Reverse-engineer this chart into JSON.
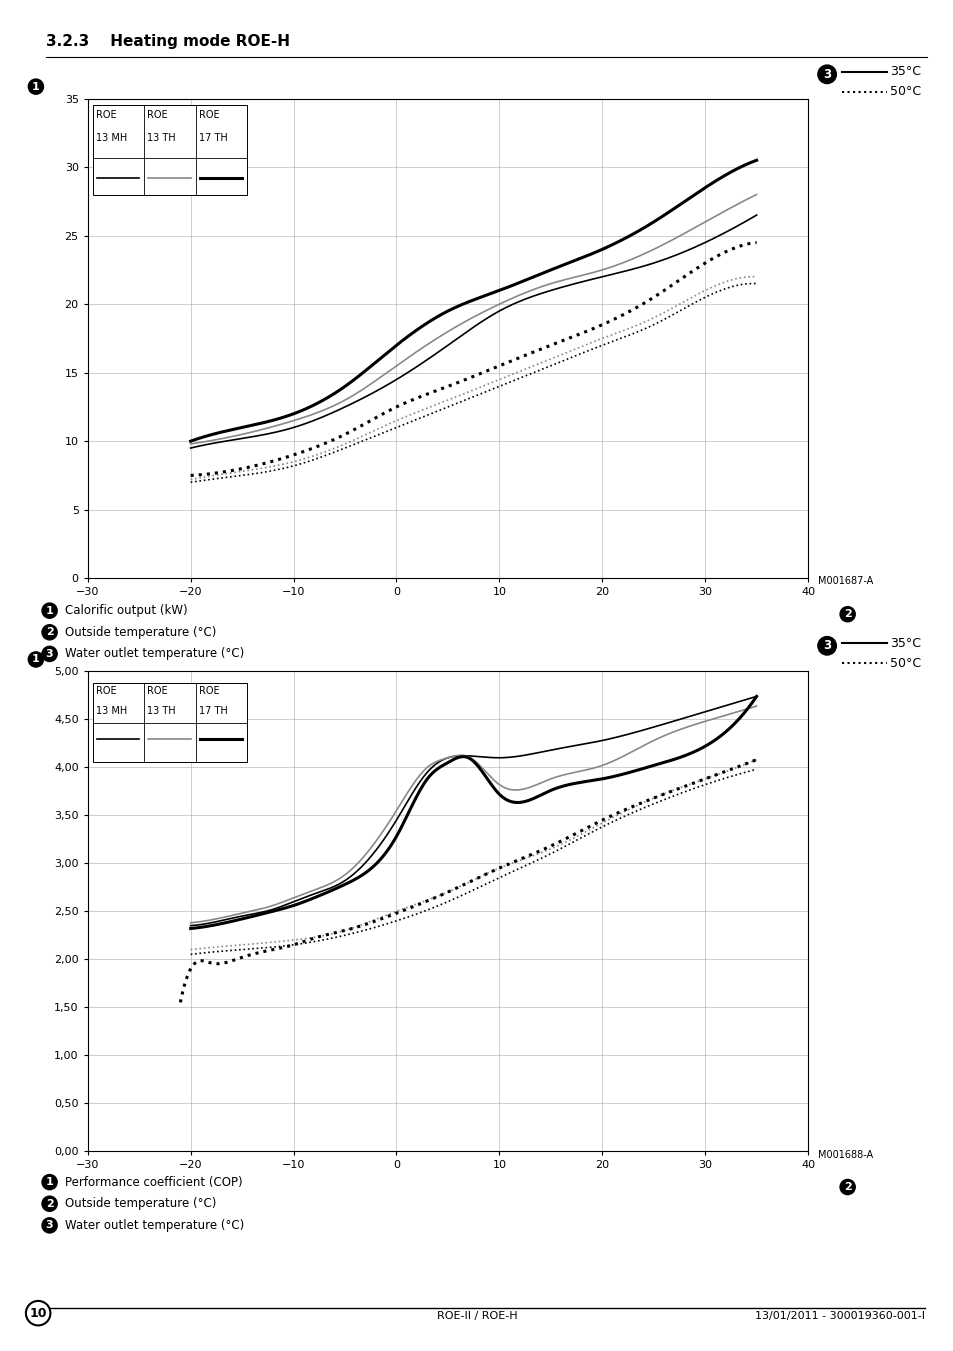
{
  "page_title": "3.2.3    Heating mode ROE-H",
  "chart1": {
    "ylim": [
      0,
      35
    ],
    "yticks": [
      0,
      5,
      10,
      15,
      20,
      25,
      30,
      35
    ],
    "xlim": [
      -30,
      40
    ],
    "xticks": [
      -30,
      -20,
      -10,
      0,
      10,
      20,
      30,
      40
    ],
    "label1": "Calorific output (kW)",
    "label2": "Outside temperature (°C)",
    "label3": "Water outlet temperature (°C)",
    "ref_code": "M001687-A",
    "lines": [
      {
        "x": [
          -20,
          -15,
          -10,
          -5,
          0,
          5,
          10,
          15,
          20,
          25,
          30,
          35
        ],
        "y": [
          9.5,
          10.2,
          11.0,
          12.5,
          14.5,
          17.0,
          19.5,
          21.0,
          22.0,
          23.0,
          24.5,
          26.5
        ],
        "color": "#000000",
        "lw": 1.2,
        "ls": "-"
      },
      {
        "x": [
          -20,
          -15,
          -10,
          -5,
          0,
          5,
          10,
          15,
          20,
          25,
          30,
          35
        ],
        "y": [
          7.0,
          7.5,
          8.2,
          9.5,
          11.0,
          12.5,
          14.0,
          15.5,
          17.0,
          18.5,
          20.5,
          21.5
        ],
        "color": "#000000",
        "lw": 1.2,
        "ls": ":"
      },
      {
        "x": [
          -20,
          -15,
          -10,
          -5,
          0,
          5,
          10,
          15,
          20,
          25,
          30,
          35
        ],
        "y": [
          9.8,
          10.5,
          11.5,
          13.0,
          15.5,
          18.0,
          20.0,
          21.5,
          22.5,
          24.0,
          26.0,
          28.0
        ],
        "color": "#888888",
        "lw": 1.2,
        "ls": "-"
      },
      {
        "x": [
          -20,
          -15,
          -10,
          -5,
          0,
          5,
          10,
          15,
          20,
          25,
          30,
          35
        ],
        "y": [
          7.2,
          7.8,
          8.5,
          9.8,
          11.5,
          13.0,
          14.5,
          16.0,
          17.5,
          19.0,
          21.0,
          22.0
        ],
        "color": "#888888",
        "lw": 1.2,
        "ls": ":"
      },
      {
        "x": [
          -20,
          -15,
          -10,
          -5,
          0,
          5,
          10,
          15,
          20,
          25,
          30,
          35
        ],
        "y": [
          10.0,
          11.0,
          12.0,
          14.0,
          17.0,
          19.5,
          21.0,
          22.5,
          24.0,
          26.0,
          28.5,
          30.5
        ],
        "color": "#000000",
        "lw": 2.2,
        "ls": "-"
      },
      {
        "x": [
          -20,
          -15,
          -10,
          -5,
          0,
          5,
          10,
          15,
          20,
          25,
          30,
          35
        ],
        "y": [
          7.5,
          8.0,
          9.0,
          10.5,
          12.5,
          14.0,
          15.5,
          17.0,
          18.5,
          20.5,
          23.0,
          24.5
        ],
        "color": "#000000",
        "lw": 2.2,
        "ls": ":"
      }
    ],
    "legend_lines": [
      {
        "color": "#000000",
        "lw": 1.2,
        "ls": "-"
      },
      {
        "color": "#888888",
        "lw": 1.2,
        "ls": "-"
      },
      {
        "color": "#000000",
        "lw": 2.2,
        "ls": "-"
      }
    ]
  },
  "chart2": {
    "ylim": [
      0.0,
      5.0
    ],
    "yticks": [
      0.0,
      0.5,
      1.0,
      1.5,
      2.0,
      2.5,
      3.0,
      3.5,
      4.0,
      4.5,
      5.0
    ],
    "ytick_labels": [
      "0,00",
      "0,50",
      "1,00",
      "1,50",
      "2,00",
      "2,50",
      "3,00",
      "3,50",
      "4,00",
      "4,50",
      "5,00"
    ],
    "xlim": [
      -30,
      40
    ],
    "xticks": [
      -30,
      -20,
      -10,
      0,
      10,
      20,
      30,
      40
    ],
    "label1": "Performance coefficient (COP)",
    "label2": "Outside temperature (°C)",
    "label3": "Water outlet temperature (°C)",
    "ref_code": "M001688-A",
    "lines": [
      {
        "x": [
          -20,
          -18,
          -15,
          -12,
          -10,
          -8,
          -5,
          0,
          3,
          5,
          7,
          10,
          15,
          20,
          25,
          30,
          35
        ],
        "y": [
          2.35,
          2.38,
          2.45,
          2.52,
          2.6,
          2.68,
          2.82,
          3.45,
          3.95,
          4.1,
          4.12,
          4.1,
          4.18,
          4.28,
          4.42,
          4.58,
          4.74
        ],
        "color": "#000000",
        "lw": 1.2,
        "ls": "-"
      },
      {
        "x": [
          -20,
          -15,
          -10,
          -5,
          0,
          5,
          10,
          15,
          20,
          25,
          30,
          35
        ],
        "y": [
          2.05,
          2.1,
          2.15,
          2.25,
          2.4,
          2.6,
          2.85,
          3.1,
          3.38,
          3.62,
          3.82,
          3.98
        ],
        "color": "#000000",
        "lw": 1.2,
        "ls": ":"
      },
      {
        "x": [
          -20,
          -18,
          -15,
          -12,
          -10,
          -8,
          -5,
          0,
          3,
          5,
          7,
          10,
          15,
          20,
          25,
          30,
          35
        ],
        "y": [
          2.38,
          2.41,
          2.48,
          2.56,
          2.64,
          2.72,
          2.88,
          3.55,
          4.0,
          4.1,
          4.11,
          3.82,
          3.88,
          4.02,
          4.28,
          4.48,
          4.64
        ],
        "color": "#888888",
        "lw": 1.2,
        "ls": "-"
      },
      {
        "x": [
          -20,
          -15,
          -10,
          -5,
          0,
          5,
          10,
          15,
          20,
          25,
          30,
          35
        ],
        "y": [
          2.1,
          2.15,
          2.2,
          2.3,
          2.5,
          2.7,
          2.95,
          3.15,
          3.42,
          3.68,
          3.88,
          4.08
        ],
        "color": "#888888",
        "lw": 1.2,
        "ls": ":"
      },
      {
        "x": [
          -20,
          -18,
          -15,
          -12,
          -10,
          -8,
          -5,
          0,
          3,
          5,
          7,
          10,
          15,
          20,
          25,
          30,
          35
        ],
        "y": [
          2.32,
          2.35,
          2.42,
          2.5,
          2.56,
          2.64,
          2.78,
          3.28,
          3.88,
          4.05,
          4.1,
          3.72,
          3.76,
          3.88,
          4.02,
          4.22,
          4.74
        ],
        "color": "#000000",
        "lw": 2.2,
        "ls": "-"
      },
      {
        "x": [
          -21,
          -20,
          -18,
          -15,
          -12,
          -10,
          -8,
          -5,
          0,
          5,
          10,
          15,
          20,
          25,
          30,
          35
        ],
        "y": [
          1.55,
          1.9,
          1.96,
          2.02,
          2.1,
          2.15,
          2.22,
          2.3,
          2.48,
          2.7,
          2.95,
          3.18,
          3.45,
          3.68,
          3.88,
          4.08
        ],
        "color": "#000000",
        "lw": 2.2,
        "ls": ":"
      },
      {
        "x": [
          -20,
          -15,
          -10,
          -5,
          0,
          5,
          10,
          15,
          20,
          25,
          30,
          35
        ],
        "y": [
          2.35,
          2.42,
          2.5,
          2.62,
          2.8,
          3.02,
          3.28,
          3.5,
          3.72,
          3.9,
          4.1,
          4.38
        ],
        "color": "#888888",
        "lw": 1.2,
        "ls": "-"
      },
      {
        "x": [
          -20,
          -15,
          -10,
          -5,
          0,
          5,
          10,
          15,
          20,
          25,
          30,
          35
        ],
        "y": [
          2.25,
          2.3,
          2.38,
          2.5,
          2.68,
          2.88,
          3.12,
          3.32,
          3.52,
          3.72,
          3.88,
          4.08
        ],
        "color": "#888888",
        "lw": 1.2,
        "ls": "-"
      }
    ],
    "legend_lines": [
      {
        "color": "#000000",
        "lw": 1.2,
        "ls": "-"
      },
      {
        "color": "#888888",
        "lw": 1.2,
        "ls": "-"
      },
      {
        "color": "#000000",
        "lw": 2.2,
        "ls": "-"
      }
    ]
  },
  "legend_text_35": "35°C",
  "legend_text_50": "50°C",
  "background_color": "#ffffff",
  "footer_text": "ROE-II / ROE-H",
  "footer_date": "13/01/2011 - 300019360-001-I",
  "page_num": "10",
  "box_headers": [
    "ROE\n13 MH",
    "ROE\n13 TH",
    "ROE\n17 TH"
  ]
}
